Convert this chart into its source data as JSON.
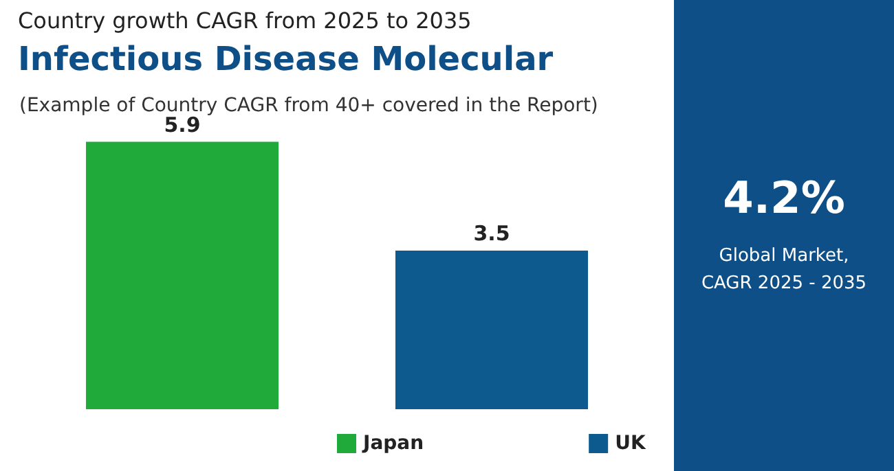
{
  "chart_data": {
    "type": "bar",
    "title": "Country growth CAGR from 2025 to 2035",
    "subtitle": "Infectious Disease Molecular",
    "annotations": [
      "(Example of Country CAGR from 40+ covered in the Report)",
      "4.2%",
      "Global Market,",
      "CAGR 2025 - 2035"
    ],
    "categories": [
      null,
      null
    ],
    "series": [
      {
        "name": "Japan",
        "color": "#1faa3a",
        "values": [
          5.9,
          null
        ]
      },
      {
        "name": "UK",
        "color": "#0d5a8e",
        "values": [
          null,
          3.5
        ]
      }
    ],
    "stacked": true,
    "data_labels": true,
    "legend": "bottom"
  }
}
